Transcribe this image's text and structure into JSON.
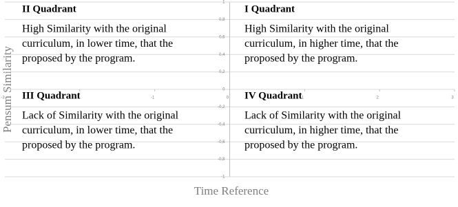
{
  "chart_data": {
    "type": "quadrant",
    "x_label": "Time Reference",
    "y_label": "Pensum Similarity",
    "xlim": [
      -3,
      3
    ],
    "xticks": [
      -3,
      -2,
      -1,
      0,
      1,
      2,
      3
    ],
    "ylim": [
      -1,
      1
    ],
    "yticks": [
      {
        "value": -1,
        "label": "-1"
      },
      {
        "value": -0.8,
        "label": "-0,8"
      },
      {
        "value": -0.6,
        "label": "-0,6"
      },
      {
        "value": -0.4,
        "label": "-0,4"
      },
      {
        "value": -0.2,
        "label": "-0,2"
      },
      0,
      {
        "value": 0.2,
        "label": "0,2"
      },
      {
        "value": 0.4,
        "label": "0,4"
      },
      {
        "value": 0.6,
        "label": "0,6"
      },
      {
        "value": 0.8,
        "label": "0,8"
      },
      1
    ],
    "grid": true,
    "quadrants": [
      {
        "title": "II Quadrant",
        "lines": [
          "High Similarity with the original",
          "curriculum, in lower time, that the",
          "proposed by the program."
        ]
      },
      {
        "title": "I Quadrant",
        "lines": [
          "High Similarity with the original",
          "curriculum, in higher time, that the",
          "proposed by the program."
        ]
      },
      {
        "title": "III Quadrant",
        "lines": [
          "Lack of Similarity with the original",
          "curriculum, in lower time, that the",
          "proposed by the program."
        ]
      },
      {
        "title": "IV Quadrant",
        "lines": [
          "Lack of Similarity with the original",
          "curriculum, in higher time, that the",
          "proposed by the program."
        ]
      }
    ]
  }
}
